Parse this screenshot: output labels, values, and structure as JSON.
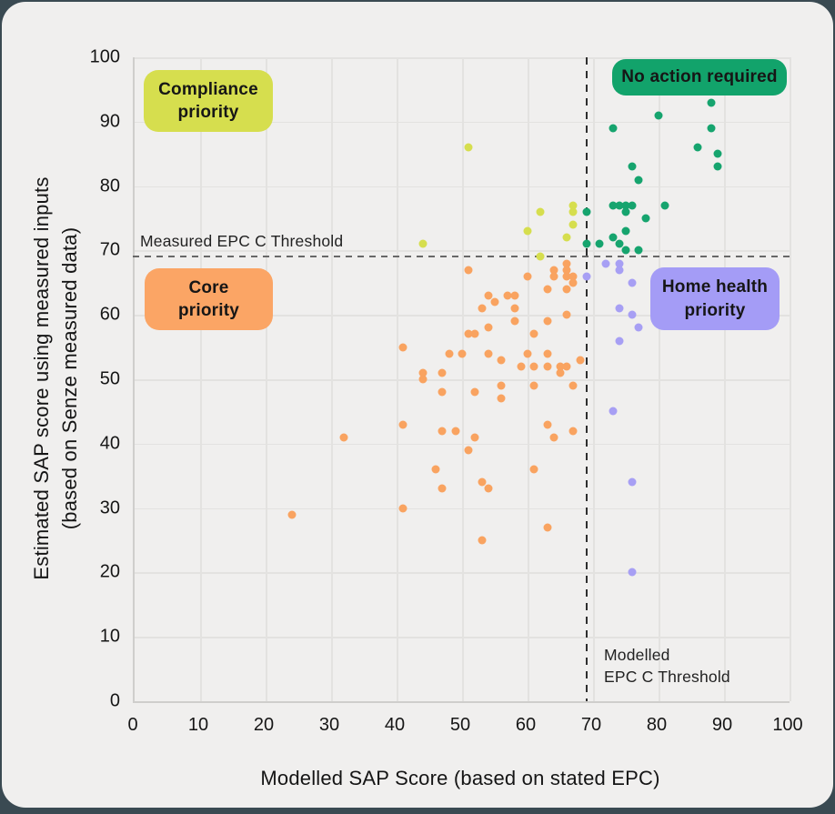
{
  "chart_data": {
    "type": "scatter",
    "title": "",
    "xlabel": "Modelled SAP Score (based on stated EPC)",
    "ylabel": [
      "Estimated SAP score using measured inputs",
      "(based on Senze measured data)"
    ],
    "xlim": [
      0,
      100
    ],
    "ylim": [
      0,
      100
    ],
    "xticks": [
      0,
      10,
      20,
      30,
      40,
      50,
      60,
      70,
      80,
      90,
      100
    ],
    "yticks": [
      0,
      10,
      20,
      30,
      40,
      50,
      60,
      70,
      80,
      90,
      100
    ],
    "grid": true,
    "thresholds": {
      "horizontal": {
        "value": 69,
        "label": "Measured EPC C Threshold"
      },
      "vertical": {
        "value": 69,
        "label": [
          "Modelled",
          "EPC C Threshold"
        ]
      }
    },
    "series": [
      {
        "name": "Compliance priority",
        "quadrant": "top-left",
        "color": "#d6de4e",
        "points": [
          [
            44,
            71
          ],
          [
            51,
            86
          ],
          [
            60,
            73
          ],
          [
            62,
            69
          ],
          [
            62,
            76
          ],
          [
            66,
            72
          ],
          [
            67,
            74
          ],
          [
            67,
            76
          ],
          [
            67,
            77
          ]
        ]
      },
      {
        "name": "No action required",
        "quadrant": "top-right",
        "color": "#16a46e",
        "points": [
          [
            69,
            71
          ],
          [
            69,
            76
          ],
          [
            71,
            71
          ],
          [
            73,
            72
          ],
          [
            73,
            77
          ],
          [
            73,
            89
          ],
          [
            74,
            71
          ],
          [
            74,
            77
          ],
          [
            75,
            70
          ],
          [
            75,
            73
          ],
          [
            75,
            76
          ],
          [
            75,
            77
          ],
          [
            76,
            77
          ],
          [
            76,
            83
          ],
          [
            77,
            70
          ],
          [
            77,
            81
          ],
          [
            78,
            75
          ],
          [
            80,
            91
          ],
          [
            81,
            77
          ],
          [
            86,
            86
          ],
          [
            88,
            89
          ],
          [
            88,
            93
          ],
          [
            89,
            83
          ],
          [
            89,
            85
          ]
        ]
      },
      {
        "name": "Core priority",
        "quadrant": "bottom-left",
        "color": "#f9a360",
        "points": [
          [
            24,
            29
          ],
          [
            32,
            41
          ],
          [
            41,
            30
          ],
          [
            41,
            43
          ],
          [
            41,
            55
          ],
          [
            44,
            50
          ],
          [
            44,
            51
          ],
          [
            46,
            36
          ],
          [
            47,
            33
          ],
          [
            47,
            42
          ],
          [
            47,
            48
          ],
          [
            47,
            51
          ],
          [
            48,
            54
          ],
          [
            49,
            42
          ],
          [
            50,
            54
          ],
          [
            51,
            39
          ],
          [
            51,
            57
          ],
          [
            51,
            67
          ],
          [
            52,
            41
          ],
          [
            52,
            48
          ],
          [
            52,
            57
          ],
          [
            53,
            25
          ],
          [
            53,
            34
          ],
          [
            53,
            61
          ],
          [
            54,
            33
          ],
          [
            54,
            54
          ],
          [
            54,
            58
          ],
          [
            54,
            63
          ],
          [
            55,
            62
          ],
          [
            56,
            47
          ],
          [
            56,
            49
          ],
          [
            56,
            53
          ],
          [
            57,
            63
          ],
          [
            58,
            59
          ],
          [
            58,
            61
          ],
          [
            58,
            63
          ],
          [
            59,
            52
          ],
          [
            60,
            54
          ],
          [
            60,
            66
          ],
          [
            61,
            36
          ],
          [
            61,
            49
          ],
          [
            61,
            52
          ],
          [
            61,
            57
          ],
          [
            63,
            27
          ],
          [
            63,
            43
          ],
          [
            63,
            52
          ],
          [
            63,
            54
          ],
          [
            63,
            59
          ],
          [
            63,
            64
          ],
          [
            64,
            41
          ],
          [
            64,
            66
          ],
          [
            64,
            67
          ],
          [
            65,
            51
          ],
          [
            65,
            52
          ],
          [
            66,
            52
          ],
          [
            66,
            60
          ],
          [
            66,
            64
          ],
          [
            66,
            66
          ],
          [
            66,
            67
          ],
          [
            66,
            68
          ],
          [
            67,
            42
          ],
          [
            67,
            49
          ],
          [
            67,
            65
          ],
          [
            67,
            66
          ],
          [
            68,
            53
          ]
        ]
      },
      {
        "name": "Home health priority",
        "quadrant": "bottom-right",
        "color": "#a79ff4",
        "points": [
          [
            69,
            66
          ],
          [
            72,
            68
          ],
          [
            73,
            45
          ],
          [
            74,
            56
          ],
          [
            74,
            61
          ],
          [
            74,
            67
          ],
          [
            74,
            68
          ],
          [
            76,
            20
          ],
          [
            76,
            34
          ],
          [
            76,
            60
          ],
          [
            76,
            65
          ],
          [
            77,
            58
          ]
        ]
      }
    ]
  },
  "quadrant_labels": {
    "compliance": {
      "lines": [
        "Compliance",
        "priority"
      ],
      "bg": "#d6de4e"
    },
    "no_action": {
      "lines": [
        "No action required"
      ],
      "bg": "#12a36b"
    },
    "core": {
      "lines": [
        "Core",
        "priority"
      ],
      "bg": "#fba565"
    },
    "home_health": {
      "lines": [
        "Home health",
        "priority"
      ],
      "bg": "#a49cf6"
    }
  }
}
